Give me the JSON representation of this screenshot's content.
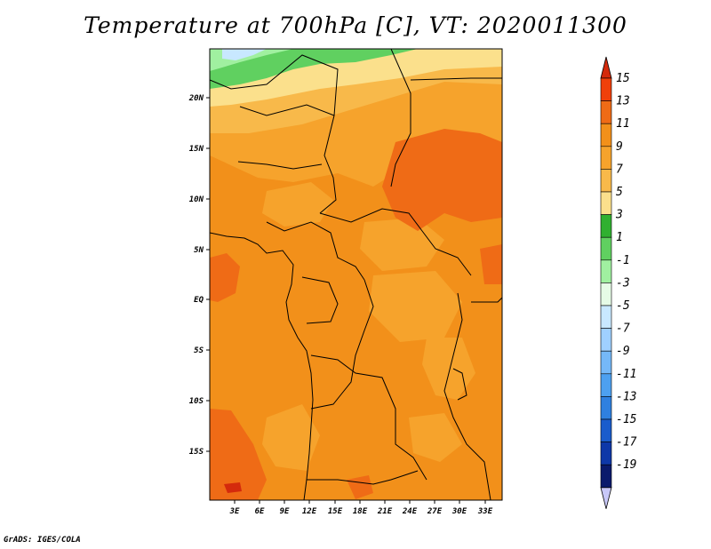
{
  "title": "Temperature at 700hPa [C], VT: 2020011300",
  "credit": "GrADS: IGES/COLA",
  "map": {
    "lat_ticks": [
      "20N",
      "15N",
      "10N",
      "5N",
      "EQ",
      "5S",
      "10S",
      "15S"
    ],
    "lon_ticks": [
      "3E",
      "6E",
      "9E",
      "12E",
      "15E",
      "18E",
      "21E",
      "24E",
      "27E",
      "30E",
      "33E"
    ]
  },
  "colorbar": {
    "labels": [
      "15",
      "13",
      "11",
      "9",
      "7",
      "5",
      "3",
      "1",
      "-1",
      "-3",
      "-5",
      "-7",
      "-9",
      "-11",
      "-13",
      "-15",
      "-17",
      "-19"
    ],
    "colors": [
      "#d42a0c",
      "#f0400a",
      "#ef6b16",
      "#f2901a",
      "#f6a32c",
      "#f8b94a",
      "#fbe08c",
      "#30b030",
      "#60d060",
      "#a0f0a0",
      "#e6fbe6",
      "#c8e8ff",
      "#9fd0ff",
      "#75b8f8",
      "#4da0f0",
      "#2f80e0",
      "#1a5ccc",
      "#0e38a8",
      "#0a1a6c"
    ],
    "top_arrow_color": "#d42a0c",
    "bottom_arrow_color": "#c8c8f8"
  }
}
